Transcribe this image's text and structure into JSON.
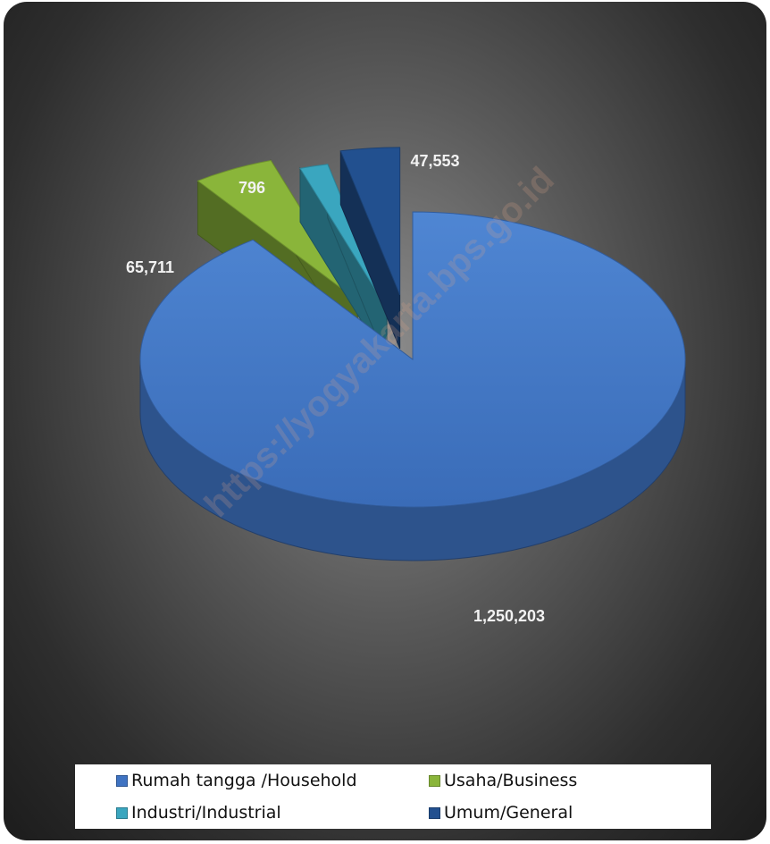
{
  "chart_data": {
    "type": "pie",
    "title": "",
    "categories": [
      "Rumah tangga /Household",
      "Usaha/Business",
      "Industri/Industrial",
      "Umum/General"
    ],
    "values": [
      1250203,
      65711,
      796,
      47553
    ],
    "data_labels": [
      "1,250,203",
      "65,711",
      "796",
      "47,553"
    ],
    "colors": [
      "#3f73c2",
      "#8ab53a",
      "#3aa6bf",
      "#22508f"
    ],
    "exploded": [
      false,
      true,
      true,
      true
    ],
    "style": "3d",
    "legend": {
      "position": "bottom"
    }
  },
  "watermark": "https://yogyakarta.bps.go.id"
}
